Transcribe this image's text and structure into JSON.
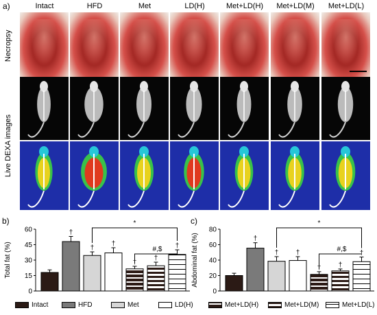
{
  "panel_a_label": "a)",
  "groups": [
    "Intact",
    "HFD",
    "Met",
    "LD(H)",
    "Met+LD(H)",
    "Met+LD(M)",
    "Met+LD(L)"
  ],
  "rows": [
    "Necropsy",
    "Live DEXA images"
  ],
  "colors": {
    "intact": "#2b1a15",
    "hfd": "#7a7a7a",
    "met": "#d6d6d6",
    "dexa_bg": "#1e2ea8"
  },
  "legend": [
    "Intact",
    "HFD",
    "Met",
    "LD(H)",
    "Met+LD(H)",
    "Met+LD(M)",
    "Met+LD(L)"
  ],
  "chart_data": [
    {
      "type": "bar",
      "panel_label": "b)",
      "ylabel": "Total fat (%)",
      "categories": [
        "Intact",
        "HFD",
        "Met",
        "LD(H)",
        "Met+LD(H)",
        "Met+LD(M)",
        "Met+LD(L)"
      ],
      "values": [
        18,
        48,
        34.5,
        37,
        21.5,
        24.5,
        35.5
      ],
      "errors": [
        2.5,
        5,
        3.5,
        5,
        2.5,
        3.5,
        4.5
      ],
      "ylim": [
        0,
        60
      ],
      "yticks": [
        0,
        15,
        30,
        45,
        60
      ],
      "annotations": {
        "dagger": "†",
        "star": "*",
        "hash": "#,$"
      }
    },
    {
      "type": "bar",
      "panel_label": "c)",
      "ylabel": "Abdominal fat (%)",
      "categories": [
        "Intact",
        "HFD",
        "Met",
        "LD(H)",
        "Met+LD(H)",
        "Met+LD(M)",
        "Met+LD(L)"
      ],
      "values": [
        20,
        55.5,
        38.5,
        39.5,
        21.5,
        26,
        38
      ],
      "errors": [
        3,
        7,
        6,
        5,
        3.5,
        2.5,
        6
      ],
      "ylim": [
        0,
        80
      ],
      "yticks": [
        0,
        20,
        40,
        60,
        80
      ],
      "annotations": {
        "dagger": "†",
        "star": "*",
        "hash": "#,$"
      }
    }
  ]
}
